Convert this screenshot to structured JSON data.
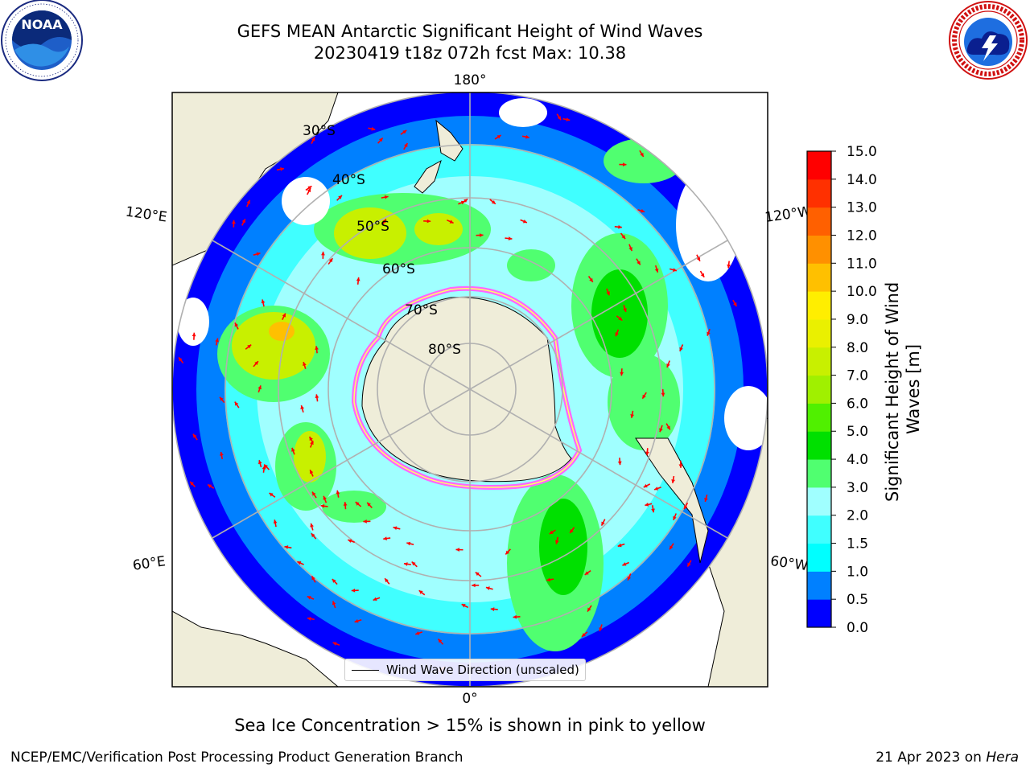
{
  "header": {
    "title_line1": "GEFS MEAN Antarctic Significant Height of Wind Waves",
    "title_line2": "20230419 t18z 072h fcst   Max: 10.38",
    "logo_left": "NOAA",
    "logo_left_ring_text": "NATIONAL OCEANIC AND ATMOSPHERIC ADMINISTRATION · U.S. DEPARTMENT OF COMMERCE",
    "logo_right_ring_text": "NATIONAL WEATHER SERVICE"
  },
  "map": {
    "projection": "south-polar-stereographic",
    "longitude_labels": [
      "180°",
      "120°E",
      "120°W",
      "60°E",
      "60°W",
      "0°"
    ],
    "latitude_labels": [
      "30°S",
      "40°S",
      "50°S",
      "60°S",
      "70°S",
      "80°S"
    ],
    "legend_label": "Wind Wave Direction (unscaled)",
    "max_value": 10.38,
    "field_units": "m",
    "arrow_color": "#ff0000",
    "land_color": "#efedd9",
    "ice_colors": [
      "#ff66ff",
      "#ffff66"
    ]
  },
  "colorbar": {
    "label": "Significant Height of Wind Waves [m]",
    "ticks": [
      "0.0",
      "0.5",
      "1.0",
      "1.5",
      "2.0",
      "3.0",
      "4.0",
      "5.0",
      "6.0",
      "7.0",
      "8.0",
      "9.0",
      "10.0",
      "11.0",
      "12.0",
      "13.0",
      "14.0",
      "15.0"
    ],
    "colors": [
      "#0000ff",
      "#0080ff",
      "#00ffff",
      "#40ffff",
      "#a0ffff",
      "#50ff70",
      "#00e000",
      "#50f000",
      "#a0f000",
      "#c8f000",
      "#eaf000",
      "#ffee00",
      "#ffc000",
      "#ff9000",
      "#ff6000",
      "#ff3000",
      "#ff0000"
    ]
  },
  "caption": "Sea Ice Concentration > 15% is shown in pink to yellow",
  "footer": {
    "left": "NCEP/EMC/Verification Post Processing Product Generation Branch",
    "right_date": "21 Apr 2023 on",
    "right_host": "Hera"
  }
}
